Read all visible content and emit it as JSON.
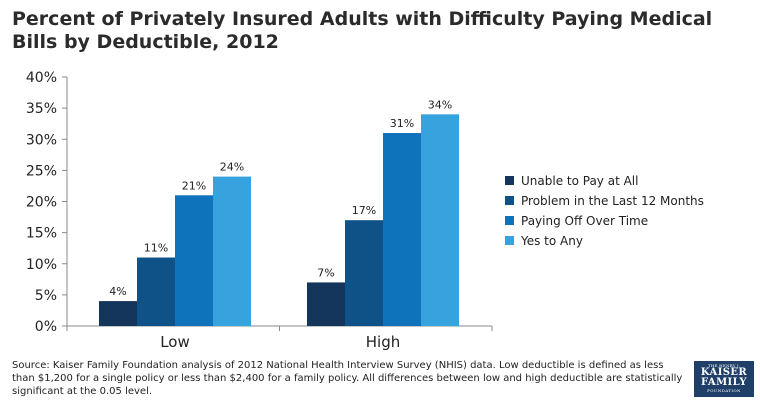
{
  "chart_data": {
    "type": "bar",
    "title": "Percent of Privately Insured Adults with Difficulty Paying Medical Bills by Deductible, 2012",
    "categories": [
      "Low",
      "High"
    ],
    "series": [
      {
        "name": "Unable to Pay at All",
        "values": [
          4,
          7
        ],
        "labels": [
          "4%",
          "7%"
        ],
        "color": "#14355c"
      },
      {
        "name": "Problem in the Last 12 Months",
        "values": [
          11,
          17
        ],
        "labels": [
          "11%",
          "17%"
        ],
        "color": "#0e5288"
      },
      {
        "name": "Paying Off Over Time",
        "values": [
          21,
          31
        ],
        "labels": [
          "21%",
          "31%"
        ],
        "color": "#0f73bb"
      },
      {
        "name": "Yes to Any",
        "values": [
          24,
          34
        ],
        "labels": [
          "24%",
          "34%"
        ],
        "color": "#36a2de"
      }
    ],
    "yticks": [
      "0%",
      "5%",
      "10%",
      "15%",
      "20%",
      "25%",
      "30%",
      "35%",
      "40%"
    ],
    "ylim": [
      0,
      40
    ],
    "xlabel": "",
    "ylabel": "",
    "grid": false,
    "legend": "right"
  },
  "footnote": "Source: Kaiser Family Foundation analysis of 2012 National Health Interview Survey (NHIS) data. Low deductible is defined as less than $1,200 for a single policy or less than $2,400 for a family policy.  All differences between low and high deductible are statistically significant at the 0.05 level.",
  "logo": {
    "line1": "THE HENRY J.",
    "line2": "KAISER",
    "line3": "FAMILY",
    "line4": "FOUNDATION"
  },
  "colors": {
    "axis": "#8a8a8a",
    "text": "#222222"
  }
}
